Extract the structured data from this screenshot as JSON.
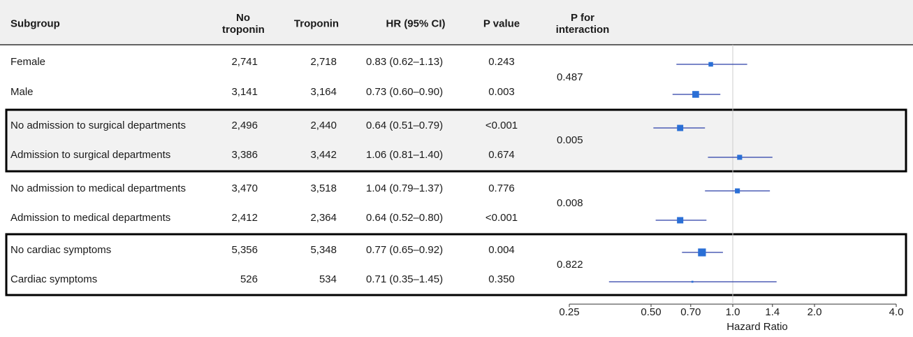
{
  "table": {
    "headers": [
      "Subgroup",
      "No troponin",
      "Troponin",
      "HR (95% CI)",
      "P value",
      "P for interaction"
    ],
    "rows": [
      [
        "Female",
        "2,741",
        "2,718",
        "0.243"
      ],
      [
        "Male",
        "3,141",
        "3,164",
        "0.003"
      ],
      [
        "No admission to surgical departments",
        "2,496",
        "2,440",
        "<0.001"
      ],
      [
        "Admission to surgical departments",
        "3,386",
        "3,442",
        "0.674"
      ],
      [
        "No admission to medical departments",
        "3,470",
        "3,518",
        "0.776"
      ],
      [
        "Admission to medical departments",
        "2,412",
        "2,364",
        "<0.001"
      ],
      [
        "No cardiac symptoms",
        "5,356",
        "5,348",
        "0.004"
      ],
      [
        "Cardiac symptoms",
        "526",
        "534",
        "0.350"
      ]
    ],
    "interaction": [
      "0.487",
      "0.005",
      "0.008",
      "0.822"
    ]
  },
  "chart_data": {
    "type": "forest",
    "xlabel": "Hazard Ratio",
    "log": true,
    "xlim": [
      0.25,
      4.0
    ],
    "xticks": [
      0.25,
      {
        "value": 0.5,
        "label": "0.50"
      },
      {
        "value": 0.7,
        "label": "0.70"
      },
      {
        "value": 1.0,
        "label": "1.0"
      },
      1.4,
      {
        "value": 2.0,
        "label": "2.0"
      },
      {
        "value": 4.0,
        "label": "4.0"
      }
    ],
    "reference": {
      "value": 1.0,
      "label": "1.0"
    },
    "point_color": "#2a6fd6",
    "line_color": "#2b3fa8",
    "values": [
      0.83,
      0.73,
      0.64,
      1.06,
      1.04,
      0.64,
      0.77,
      0.71
    ],
    "lower": [
      0.62,
      0.6,
      0.51,
      0.81,
      0.79,
      0.52,
      0.65,
      0.35
    ],
    "upper": [
      1.13,
      0.9,
      0.79,
      1.4,
      1.37,
      0.8,
      0.92,
      1.45
    ],
    "value_labels": [
      "0.83 (0.62–1.13)",
      "0.73 (0.60–0.90)",
      "0.64 (0.51–0.79)",
      "1.06 (0.81–1.40)",
      "1.04 (0.79–1.37)",
      "0.64 (0.52–0.80)",
      "0.77 (0.65–0.92)",
      "0.71 (0.35–1.45)"
    ]
  }
}
